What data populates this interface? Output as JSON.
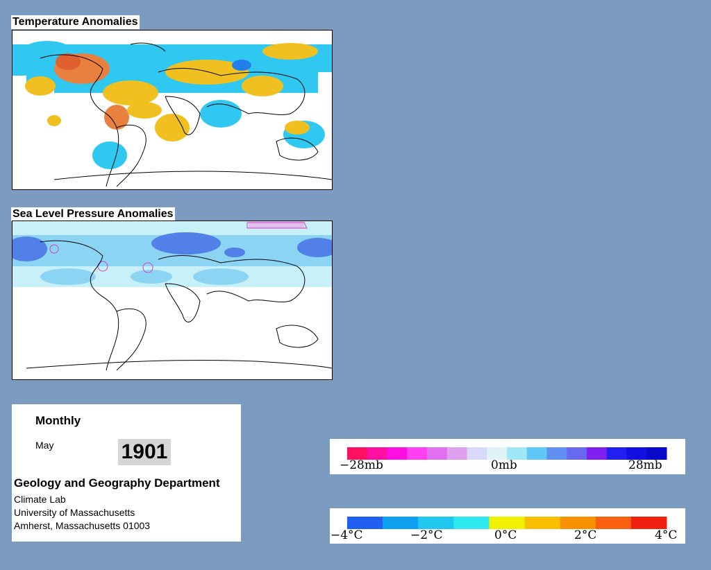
{
  "panels": {
    "temperature_title": "Temperature Anomalies",
    "pressure_title": "Sea Level Pressure Anomalies"
  },
  "info": {
    "frequency": "Monthly",
    "month": "May",
    "year": "1901",
    "department": "Geology and Geography Department",
    "lab": "Climate Lab",
    "university": "University of Massachusetts",
    "address": "Amherst, Massachusetts 01003"
  },
  "pressure_legend": {
    "labels": [
      "−28mb",
      "0mb",
      "28mb"
    ],
    "colors": [
      "#ff1060",
      "#ff10a0",
      "#ff10e0",
      "#ff40f0",
      "#e070f0",
      "#e0a0f0",
      "#d8d8f8",
      "#e0f4f8",
      "#a0e8f8",
      "#60c8f8",
      "#6090f0",
      "#6868f0",
      "#8020f0",
      "#2020f0",
      "#1010e0",
      "#0808c8"
    ]
  },
  "temperature_legend": {
    "labels": [
      "−4°C",
      "−2°C",
      "0°C",
      "2°C",
      "4°C"
    ],
    "colors": [
      "#2060f0",
      "#10a0f0",
      "#20c8f0",
      "#30e8f0",
      "#f0f000",
      "#f8c000",
      "#f89000",
      "#f86010",
      "#f02010"
    ]
  },
  "colors": {
    "background": "#7b9bc0",
    "ocean_cold": "#30c8f0",
    "warm": "#f0c020",
    "hot": "#e87030",
    "pressure_light": "#c8f0f8",
    "pressure_mid": "#8cd4f4",
    "pressure_deep": "#5080e8",
    "pressure_contour": "#d040c0"
  }
}
